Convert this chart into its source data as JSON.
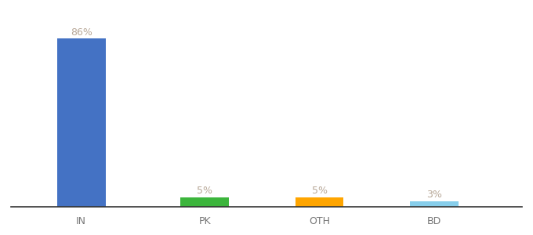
{
  "categories": [
    "IN",
    "PK",
    "OTH",
    "BD"
  ],
  "values": [
    86,
    5,
    5,
    3
  ],
  "labels": [
    "86%",
    "5%",
    "5%",
    "3%"
  ],
  "bar_colors": [
    "#4472C4",
    "#3CB53C",
    "#FFA500",
    "#87CEEB"
  ],
  "background_color": "#ffffff",
  "label_fontsize": 9,
  "tick_fontsize": 9,
  "ylim": [
    0,
    96
  ],
  "bar_width": 0.55,
  "label_color": "#b8a898"
}
